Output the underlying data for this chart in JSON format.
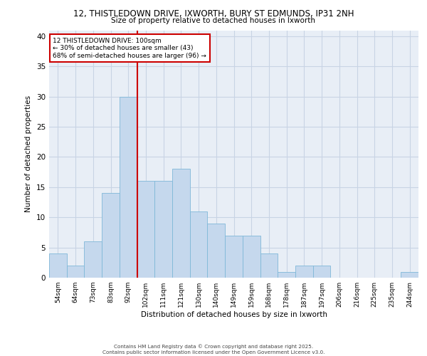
{
  "title_line1": "12, THISTLEDOWN DRIVE, IXWORTH, BURY ST EDMUNDS, IP31 2NH",
  "title_line2": "Size of property relative to detached houses in Ixworth",
  "xlabel": "Distribution of detached houses by size in Ixworth",
  "ylabel": "Number of detached properties",
  "categories": [
    "54sqm",
    "64sqm",
    "73sqm",
    "83sqm",
    "92sqm",
    "102sqm",
    "111sqm",
    "121sqm",
    "130sqm",
    "140sqm",
    "149sqm",
    "159sqm",
    "168sqm",
    "178sqm",
    "187sqm",
    "197sqm",
    "206sqm",
    "216sqm",
    "225sqm",
    "235sqm",
    "244sqm"
  ],
  "values": [
    4,
    2,
    6,
    14,
    30,
    16,
    16,
    18,
    11,
    9,
    7,
    7,
    4,
    1,
    2,
    2,
    0,
    0,
    0,
    0,
    1
  ],
  "bar_color": "#c5d8ed",
  "bar_edge_color": "#7fb8d8",
  "grid_color": "#c8d4e4",
  "background_color": "#e8eef6",
  "vline_x_index": 4.5,
  "vline_color": "#cc0000",
  "annotation_text": "12 THISTLEDOWN DRIVE: 100sqm\n← 30% of detached houses are smaller (43)\n68% of semi-detached houses are larger (96) →",
  "annotation_box_color": "white",
  "annotation_box_edge": "#cc0000",
  "ylim": [
    0,
    41
  ],
  "yticks": [
    0,
    5,
    10,
    15,
    20,
    25,
    30,
    35,
    40
  ],
  "footer": "Contains HM Land Registry data © Crown copyright and database right 2025.\nContains public sector information licensed under the Open Government Licence v3.0."
}
